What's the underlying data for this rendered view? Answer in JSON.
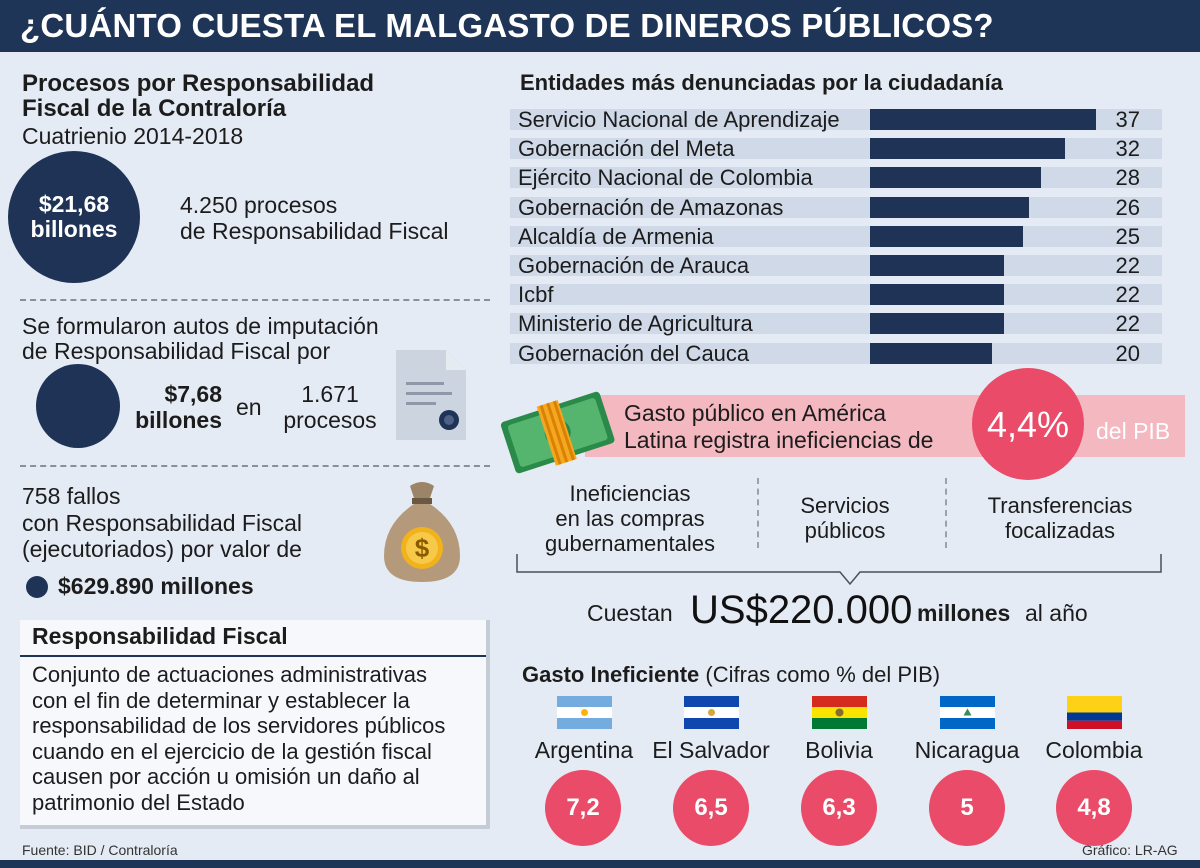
{
  "header": {
    "title": "¿CUÁNTO CUESTA EL MALGASTO DE DINEROS PÚBLICOS?"
  },
  "left": {
    "section1": {
      "title_line1": "Procesos por Responsabilidad",
      "title_line2": "Fiscal de la Contraloría",
      "subtitle": "Cuatrienio 2014-2018",
      "circle_line1": "$21,68",
      "circle_line2": "billones",
      "procesos_line1": "4.250 procesos",
      "procesos_line2": "de Responsabilidad Fiscal"
    },
    "section2": {
      "text_line1": "Se formularon autos de imputación",
      "text_line2": "de Responsabilidad Fiscal por",
      "amount_line1": "$7,68",
      "amount_line2": "billones",
      "connector": "en",
      "procesos_line1": "1.671",
      "procesos_line2": "procesos"
    },
    "section3": {
      "line1": "758 fallos",
      "line2": "con Responsabilidad Fiscal",
      "line3": "(ejecutoriados) por valor de",
      "amount": "$629.890 millones"
    },
    "definition": {
      "title": "Responsabilidad Fiscal",
      "lines": [
        "Conjunto de actuaciones administrativas",
        "con el fin de determinar y establecer la",
        "responsabilidad de los servidores públicos",
        "cuando en el ejercicio de la gestión fiscal",
        "causen por acción u omisión un daño al",
        "patrimonio del Estado"
      ]
    }
  },
  "chart_data": {
    "type": "bar",
    "title": "Entidades más denunciadas por la ciudadanía",
    "orientation": "horizontal",
    "categories": [
      "Servicio Nacional de Aprendizaje",
      "Gobernación del Meta",
      "Ejército Nacional de Colombia",
      "Gobernación de Amazonas",
      "Alcaldía de Armenia",
      "Gobernación de Arauca",
      "Icbf",
      "Ministerio de Agricultura",
      "Gobernación del Cauca"
    ],
    "values": [
      37,
      32,
      28,
      26,
      25,
      22,
      22,
      22,
      20
    ],
    "data_labels": [
      "37",
      "32",
      "28",
      "26",
      "25",
      "22",
      "22",
      "22",
      "20"
    ],
    "bar_color": "#1f3357",
    "track_color": "#cfd9e8"
  },
  "gasto": {
    "banner_line1": "Gasto público en América",
    "banner_line2": "Latina registra ineficiencias de",
    "percent": "4,4%",
    "suffix": "del PIB",
    "categories": [
      {
        "line1": "Ineficiencias",
        "line2": "en las compras",
        "line3": "gubernamentales"
      },
      {
        "line1": "Servicios",
        "line2": "públicos"
      },
      {
        "line1": "Transferencias",
        "line2": "focalizadas"
      }
    ],
    "cost_prefix": "Cuestan",
    "cost_value": "US$220.000",
    "cost_unit": "millones",
    "cost_suffix": "al año"
  },
  "ineficiente": {
    "title_bold": "Gasto Ineficiente",
    "title_rest": "(Cifras como % del PIB)",
    "countries": [
      {
        "name": "Argentina",
        "value": "7,2",
        "flag": "argentina-flag"
      },
      {
        "name": "El Salvador",
        "value": "6,5",
        "flag": "el-salvador-flag"
      },
      {
        "name": "Bolivia",
        "value": "6,3",
        "flag": "bolivia-flag"
      },
      {
        "name": "Nicaragua",
        "value": "5",
        "flag": "nicaragua-flag"
      },
      {
        "name": "Colombia",
        "value": "4,8",
        "flag": "colombia-flag"
      }
    ]
  },
  "footer": {
    "source": "Fuente: BID / Contraloría",
    "credit": "Gráfico: LR-AG"
  },
  "colors": {
    "navy": "#1e3557",
    "pink": "#ea4b68",
    "banner_pink": "#f4b8c1",
    "background": "#e4ebf5"
  }
}
